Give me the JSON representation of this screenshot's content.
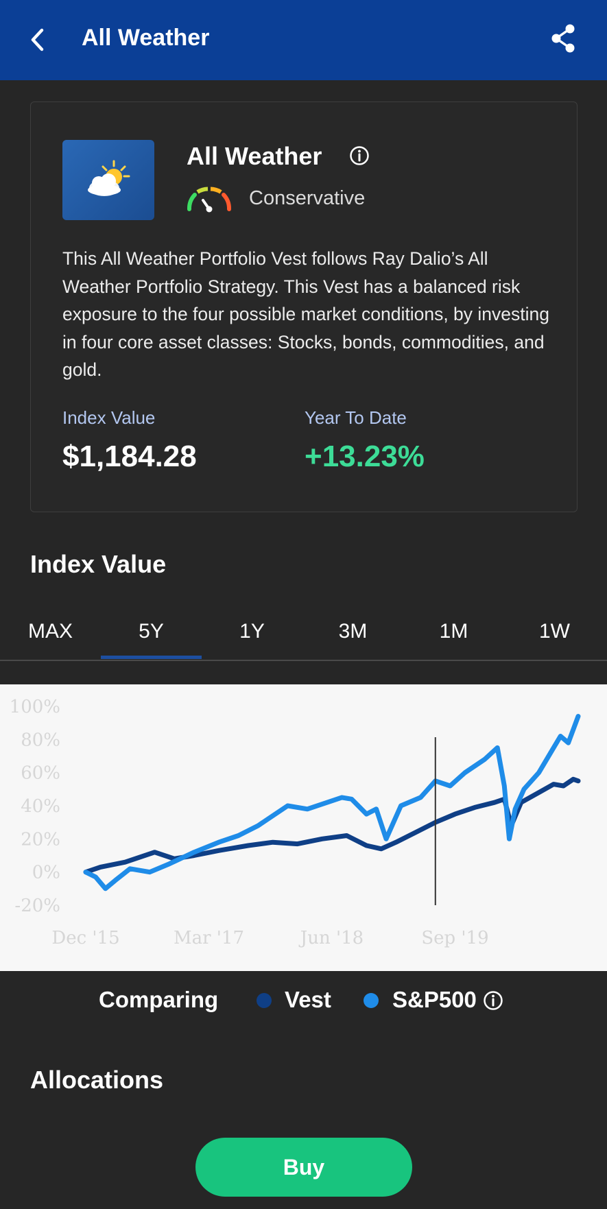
{
  "appbar": {
    "title": "All Weather"
  },
  "card": {
    "title": "All Weather",
    "risk_level": "Conservative",
    "description": "This All Weather Portfolio Vest follows Ray Dalio’s All Weather Portfolio Strategy. This Vest has a balanced risk exposure to the four possible market conditions, by investing in four core asset classes: Stocks, bonds, commodities, and gold.",
    "index_value_label": "Index Value",
    "index_value": "$1,184.28",
    "ytd_label": "Year To Date",
    "ytd_value": "+13.23%"
  },
  "chart_section": {
    "title": "Index Value",
    "tabs": [
      "MAX",
      "5Y",
      "1Y",
      "3M",
      "1M",
      "1W"
    ],
    "selected_tab": "5Y"
  },
  "legend": {
    "comparing_label": "Comparing",
    "vest_label": "Vest",
    "sp_label": "S&P500"
  },
  "allocations": {
    "title": "Allocations"
  },
  "buy": {
    "label": "Buy"
  },
  "colors": {
    "header": "#0b3f96",
    "vest_line": "#0f3f86",
    "sp_line": "#1f8ce8",
    "ytd_positive": "#3ddc97",
    "buy": "#18c47e"
  },
  "chart_data": {
    "type": "line",
    "x_tick_labels": [
      "Dec '15",
      "Mar '17",
      "Jun '18",
      "Sep '19"
    ],
    "y_tick_labels": [
      "100%",
      "80%",
      "60%",
      "40%",
      "20%",
      "0%",
      "-20%"
    ],
    "ylim": [
      -20,
      100
    ],
    "xlim": [
      2015.9,
      2020.9
    ],
    "grid": false,
    "cursor_x": 2019.45,
    "series": [
      {
        "name": "Vest",
        "color": "#0f3f86",
        "x": [
          2015.9,
          2016.05,
          2016.3,
          2016.6,
          2016.8,
          2017.0,
          2017.25,
          2017.55,
          2017.8,
          2018.05,
          2018.3,
          2018.55,
          2018.75,
          2018.9,
          2019.05,
          2019.25,
          2019.45,
          2019.65,
          2019.85,
          2020.05,
          2020.15,
          2020.22,
          2020.32,
          2020.5,
          2020.65,
          2020.75,
          2020.85,
          2020.9
        ],
        "y": [
          0,
          3,
          6,
          12,
          8,
          10,
          13,
          16,
          18,
          17,
          20,
          22,
          16,
          14,
          18,
          24,
          30,
          35,
          39,
          42,
          44,
          28,
          42,
          48,
          53,
          52,
          56,
          55
        ]
      },
      {
        "name": "S&P500",
        "color": "#1f8ce8",
        "x": [
          2015.9,
          2016.0,
          2016.1,
          2016.2,
          2016.35,
          2016.55,
          2016.75,
          2017.0,
          2017.25,
          2017.45,
          2017.65,
          2017.8,
          2017.95,
          2018.15,
          2018.35,
          2018.5,
          2018.6,
          2018.75,
          2018.85,
          2018.95,
          2019.1,
          2019.3,
          2019.45,
          2019.6,
          2019.75,
          2019.95,
          2020.08,
          2020.15,
          2020.2,
          2020.26,
          2020.35,
          2020.5,
          2020.62,
          2020.72,
          2020.8,
          2020.9
        ],
        "y": [
          0,
          -3,
          -10,
          -5,
          2,
          0,
          5,
          12,
          18,
          22,
          28,
          34,
          40,
          38,
          42,
          45,
          44,
          35,
          38,
          20,
          40,
          45,
          55,
          52,
          60,
          68,
          75,
          52,
          20,
          38,
          50,
          60,
          72,
          82,
          78,
          94
        ]
      }
    ]
  }
}
